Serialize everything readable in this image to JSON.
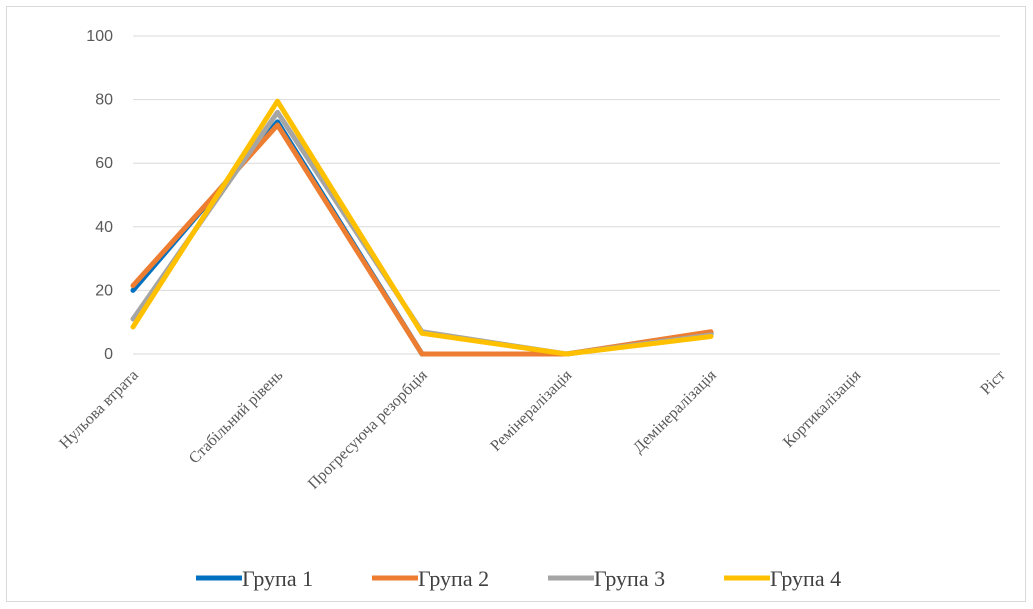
{
  "chart_data": {
    "type": "line",
    "title": "",
    "xlabel": "",
    "ylabel": "",
    "ylim": [
      0,
      100
    ],
    "yticks": [
      0,
      20,
      40,
      60,
      80,
      100
    ],
    "grid": true,
    "legend": "bottom",
    "categories": [
      "Нульова втрата",
      "Стабільний рівень",
      "Прогресуюча резорбція",
      "Ремінералізація",
      "Демінералізація",
      "Кортикалізація",
      "Ріст"
    ],
    "series": [
      {
        "name": "Група 1",
        "color": "#0070C0",
        "values": [
          20,
          73,
          0,
          0,
          6.5,
          null,
          null
        ]
      },
      {
        "name": "Група 2",
        "color": "#ED7D31",
        "values": [
          21.5,
          72,
          0,
          0,
          7,
          null,
          null
        ]
      },
      {
        "name": "Група 3",
        "color": "#A5A5A5",
        "values": [
          11,
          76,
          7,
          0,
          6,
          null,
          null
        ]
      },
      {
        "name": "Група 4",
        "color": "#FFC000",
        "values": [
          8.5,
          79.5,
          6.5,
          0,
          5.5,
          null,
          null
        ]
      }
    ]
  }
}
